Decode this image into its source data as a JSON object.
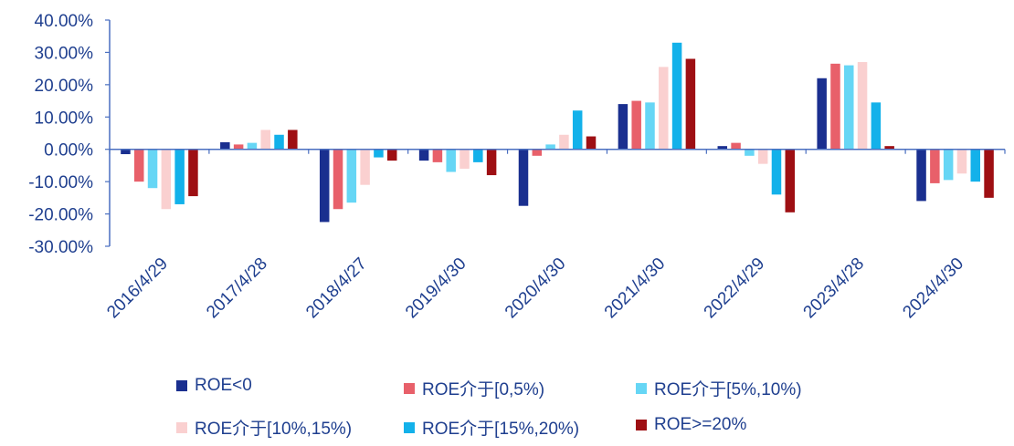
{
  "chart_data": {
    "type": "bar",
    "title": "",
    "xlabel": "",
    "ylabel": "",
    "ylim": [
      -30,
      40
    ],
    "yticks": [
      40,
      30,
      20,
      10,
      0,
      -10,
      -20,
      -30
    ],
    "ytick_labels": [
      "40.00%",
      "30.00%",
      "20.00%",
      "10.00%",
      "0.00%",
      "-10.00%",
      "-20.00%",
      "-30.00%"
    ],
    "categories": [
      "2016/4/29",
      "2017/4/28",
      "2018/4/27",
      "2019/4/30",
      "2020/4/30",
      "2021/4/30",
      "2022/4/29",
      "2023/4/28",
      "2024/4/30"
    ],
    "series": [
      {
        "name": "ROE<0",
        "color": "#1a2f8f",
        "values": [
          -1.5,
          2.2,
          -22.5,
          -3.5,
          -17.5,
          14.0,
          1.0,
          22.0,
          -16.0
        ]
      },
      {
        "name": "ROE介于[0,5%)",
        "color": "#e8606a",
        "values": [
          -10.0,
          1.5,
          -18.5,
          -4.0,
          -2.0,
          15.0,
          2.0,
          26.5,
          -10.5
        ]
      },
      {
        "name": "ROE介于[5%,10%)",
        "color": "#66d6f5",
        "values": [
          -12.0,
          2.0,
          -16.5,
          -7.0,
          1.5,
          14.5,
          -2.0,
          26.0,
          -9.5
        ]
      },
      {
        "name": "ROE介于[10%,15%)",
        "color": "#fad0d0",
        "values": [
          -18.5,
          6.0,
          -11.0,
          -6.0,
          4.5,
          25.5,
          -4.5,
          27.0,
          -7.5
        ]
      },
      {
        "name": "ROE介于[15%,20%)",
        "color": "#13b1ea",
        "values": [
          -17.0,
          4.5,
          -2.5,
          -4.0,
          12.0,
          33.0,
          -14.0,
          14.5,
          -10.0
        ]
      },
      {
        "name": "ROE>=20%",
        "color": "#9e0f13",
        "values": [
          -14.5,
          6.0,
          -3.5,
          -8.0,
          4.0,
          28.0,
          -19.5,
          1.0,
          -15.0
        ]
      }
    ],
    "legend_position": "bottom",
    "grid": false
  }
}
